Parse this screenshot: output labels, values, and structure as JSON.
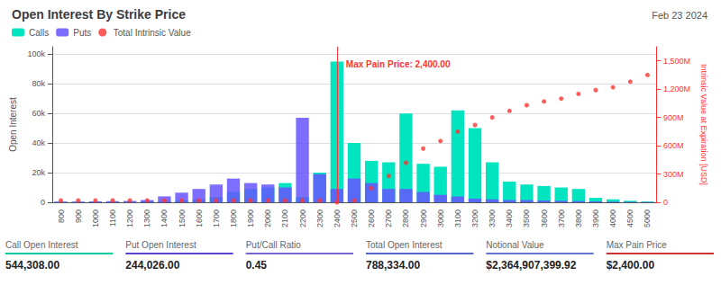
{
  "chart_data": {
    "type": "bar",
    "title": "Open Interest By Strike Price",
    "subtitle": "Feb 23 2024",
    "y_label": "Open Interest",
    "y2_label": "Intrinsic Value at Expiration [USD]",
    "categories": [
      "800",
      "900",
      "1000",
      "1100",
      "1200",
      "1300",
      "1400",
      "1500",
      "1600",
      "1700",
      "1800",
      "1900",
      "2000",
      "2100",
      "2200",
      "2300",
      "2400",
      "2500",
      "2600",
      "2700",
      "2800",
      "2900",
      "3000",
      "3100",
      "3200",
      "3300",
      "3400",
      "3500",
      "3600",
      "3700",
      "3800",
      "3900",
      "4000",
      "4500",
      "5000"
    ],
    "series": [
      {
        "name": "Calls",
        "type": "bar",
        "color": "#00e5c0",
        "values": [
          200,
          200,
          300,
          300,
          400,
          600,
          800,
          1200,
          2000,
          3500,
          7000,
          9000,
          10000,
          13000,
          3500,
          20000,
          95000,
          40000,
          28000,
          27000,
          60000,
          26000,
          24000,
          62000,
          50000,
          27000,
          14000,
          12000,
          11000,
          10000,
          9000,
          3000,
          2000,
          1000,
          500
        ]
      },
      {
        "name": "Puts",
        "type": "bar",
        "color": "#6655ff",
        "values": [
          500,
          500,
          600,
          700,
          900,
          1500,
          4000,
          6500,
          9000,
          12000,
          16000,
          13000,
          12000,
          10000,
          57000,
          19000,
          9000,
          16000,
          13000,
          9000,
          9000,
          7000,
          5000,
          4000,
          2500,
          2000,
          1500,
          1500,
          1200,
          1000,
          800,
          600,
          400,
          300,
          200
        ]
      },
      {
        "name": "Total Intrinsic Value",
        "type": "scatter",
        "color": "#ff3333",
        "marker": "circle",
        "axis": "y2",
        "values": [
          0.02,
          0.02,
          0.02,
          0.02,
          0.02,
          0.02,
          0.02,
          0.02,
          0.02,
          0.02,
          0.02,
          0.02,
          0.02,
          0.02,
          0.02,
          0.02,
          0.0,
          0.02,
          0.15,
          0.28,
          0.42,
          0.57,
          0.65,
          0.75,
          0.82,
          0.9,
          0.97,
          1.03,
          1.07,
          1.1,
          1.15,
          1.19,
          1.22,
          1.28,
          1.35
        ]
      }
    ],
    "ylim": [
      0,
      105000
    ],
    "yticks": [
      0,
      {
        "value": 20000,
        "label": "20k"
      },
      {
        "value": 40000,
        "label": "40k"
      },
      {
        "value": 60000,
        "label": "60k"
      },
      {
        "value": 80000,
        "label": "80k"
      },
      {
        "value": 100000,
        "label": "100k"
      }
    ],
    "y2lim": [
      0,
      1.65
    ],
    "y2ticks": [
      0,
      {
        "value": 0.3,
        "label": "300M"
      },
      {
        "value": 0.6,
        "label": "600M"
      },
      {
        "value": 0.9,
        "label": "900M"
      },
      {
        "value": 1.2,
        "label": "1,200M"
      },
      {
        "value": 1.5,
        "label": "1,500M"
      }
    ],
    "grid": true,
    "legend": "upper left",
    "annotations": [
      {
        "text": "Max Pain Price: 2,400.00",
        "x": "2400",
        "y": 93000,
        "color": "#ff3333"
      }
    ],
    "footer": [
      {
        "label": "Call Open Interest",
        "value": "544,308.00",
        "color": "#00c8a0"
      },
      {
        "label": "Put Open Interest",
        "value": "244,026.00",
        "color": "#5544cc"
      },
      {
        "label": "Put/Call Ratio",
        "value": "0.45",
        "color": "#7766cc"
      },
      {
        "label": "Total Open Interest",
        "value": "788,334.00",
        "color": "#5566cc"
      },
      {
        "label": "Notional Value",
        "value": "$2,364,907,399.92",
        "color": "#6677cc"
      },
      {
        "label": "Max Pain Price",
        "value": "$2,400.00",
        "color": "#cc3333"
      }
    ]
  }
}
